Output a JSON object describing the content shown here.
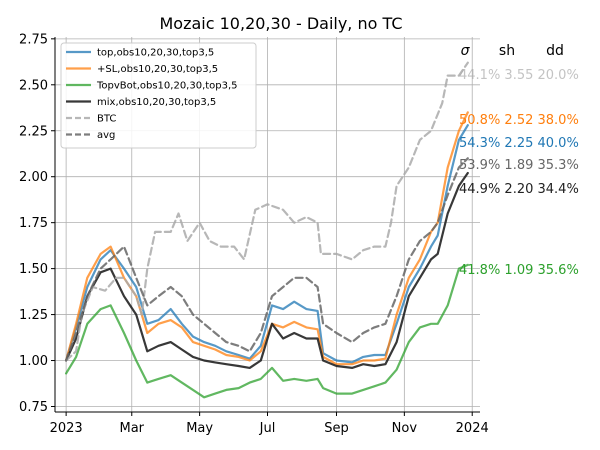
{
  "chart_data": {
    "type": "line",
    "title": "Mozaic 10,20,30 - Daily, no TC",
    "xlabel": "",
    "ylabel": "",
    "grid": true,
    "ylim": [
      0.72,
      2.76
    ],
    "yticks": [
      0.75,
      1.0,
      1.25,
      1.5,
      1.75,
      2.0,
      2.25,
      2.5,
      2.75
    ],
    "ytick_labels": [
      "0.75",
      "1.00",
      "1.25",
      "1.50",
      "1.75",
      "2.00",
      "2.25",
      "2.50",
      "2.75"
    ],
    "xlim": [
      "2022-12-22",
      "2024-01-08"
    ],
    "xticks": [
      "2023-01-01",
      "2023-03-01",
      "2023-05-01",
      "2023-07-01",
      "2023-09-01",
      "2023-11-01",
      "2024-01-01"
    ],
    "xtick_labels": [
      "2023",
      "Mar",
      "May",
      "Jul",
      "Sep",
      "Nov",
      "2024"
    ],
    "legend_position": "top-left",
    "stats_header": [
      "σ",
      "sh",
      "dd"
    ],
    "series": [
      {
        "name": "top,obs10,20,30,top3,5",
        "color": "#1f77b4",
        "dashed": false,
        "width": 2.2,
        "opacity": 0.75,
        "stats": "54.3% 2.25 40.0%",
        "points": [
          [
            "2023-01-01",
            1.0
          ],
          [
            "2023-01-10",
            1.18
          ],
          [
            "2023-01-20",
            1.4
          ],
          [
            "2023-02-01",
            1.55
          ],
          [
            "2023-02-10",
            1.6
          ],
          [
            "2023-02-22",
            1.5
          ],
          [
            "2023-03-05",
            1.4
          ],
          [
            "2023-03-15",
            1.2
          ],
          [
            "2023-03-25",
            1.22
          ],
          [
            "2023-04-05",
            1.28
          ],
          [
            "2023-04-15",
            1.2
          ],
          [
            "2023-04-25",
            1.13
          ],
          [
            "2023-05-05",
            1.1
          ],
          [
            "2023-05-15",
            1.08
          ],
          [
            "2023-05-25",
            1.05
          ],
          [
            "2023-06-05",
            1.03
          ],
          [
            "2023-06-15",
            1.01
          ],
          [
            "2023-06-25",
            1.08
          ],
          [
            "2023-07-05",
            1.3
          ],
          [
            "2023-07-15",
            1.28
          ],
          [
            "2023-07-25",
            1.32
          ],
          [
            "2023-08-05",
            1.28
          ],
          [
            "2023-08-15",
            1.27
          ],
          [
            "2023-08-20",
            1.04
          ],
          [
            "2023-09-01",
            1.0
          ],
          [
            "2023-09-15",
            0.99
          ],
          [
            "2023-09-25",
            1.02
          ],
          [
            "2023-10-05",
            1.03
          ],
          [
            "2023-10-15",
            1.03
          ],
          [
            "2023-10-25",
            1.2
          ],
          [
            "2023-11-05",
            1.4
          ],
          [
            "2023-11-15",
            1.5
          ],
          [
            "2023-11-25",
            1.62
          ],
          [
            "2023-12-01",
            1.68
          ],
          [
            "2023-12-10",
            1.95
          ],
          [
            "2023-12-20",
            2.2
          ],
          [
            "2023-12-28",
            2.28
          ]
        ]
      },
      {
        "name": "+SL,obs10,20,30,top3,5",
        "color": "#ff7f0e",
        "dashed": false,
        "width": 2.2,
        "opacity": 0.75,
        "stats": "50.8% 2.52 38.0%",
        "points": [
          [
            "2023-01-01",
            1.0
          ],
          [
            "2023-01-10",
            1.2
          ],
          [
            "2023-01-20",
            1.45
          ],
          [
            "2023-02-01",
            1.58
          ],
          [
            "2023-02-10",
            1.62
          ],
          [
            "2023-02-22",
            1.45
          ],
          [
            "2023-03-05",
            1.35
          ],
          [
            "2023-03-15",
            1.15
          ],
          [
            "2023-03-25",
            1.2
          ],
          [
            "2023-04-05",
            1.22
          ],
          [
            "2023-04-15",
            1.18
          ],
          [
            "2023-04-25",
            1.1
          ],
          [
            "2023-05-05",
            1.08
          ],
          [
            "2023-05-15",
            1.06
          ],
          [
            "2023-05-25",
            1.03
          ],
          [
            "2023-06-05",
            1.02
          ],
          [
            "2023-06-15",
            1.0
          ],
          [
            "2023-06-25",
            1.05
          ],
          [
            "2023-07-05",
            1.2
          ],
          [
            "2023-07-15",
            1.18
          ],
          [
            "2023-07-25",
            1.21
          ],
          [
            "2023-08-05",
            1.18
          ],
          [
            "2023-08-15",
            1.17
          ],
          [
            "2023-08-20",
            1.02
          ],
          [
            "2023-09-01",
            0.98
          ],
          [
            "2023-09-15",
            0.98
          ],
          [
            "2023-09-25",
            1.0
          ],
          [
            "2023-10-05",
            1.0
          ],
          [
            "2023-10-15",
            1.01
          ],
          [
            "2023-10-25",
            1.25
          ],
          [
            "2023-11-05",
            1.45
          ],
          [
            "2023-11-15",
            1.55
          ],
          [
            "2023-11-25",
            1.7
          ],
          [
            "2023-12-01",
            1.75
          ],
          [
            "2023-12-10",
            2.05
          ],
          [
            "2023-12-20",
            2.25
          ],
          [
            "2023-12-28",
            2.35
          ]
        ]
      },
      {
        "name": "TopvBot,obs10,20,30,top3,5",
        "color": "#2ca02c",
        "dashed": false,
        "width": 2.2,
        "opacity": 0.75,
        "stats": "41.8% 1.09 35.6%",
        "points": [
          [
            "2023-01-01",
            0.93
          ],
          [
            "2023-01-10",
            1.02
          ],
          [
            "2023-01-20",
            1.2
          ],
          [
            "2023-02-01",
            1.28
          ],
          [
            "2023-02-10",
            1.3
          ],
          [
            "2023-02-22",
            1.15
          ],
          [
            "2023-03-05",
            1.0
          ],
          [
            "2023-03-15",
            0.88
          ],
          [
            "2023-03-25",
            0.9
          ],
          [
            "2023-04-05",
            0.92
          ],
          [
            "2023-04-15",
            0.88
          ],
          [
            "2023-04-25",
            0.84
          ],
          [
            "2023-05-05",
            0.8
          ],
          [
            "2023-05-15",
            0.82
          ],
          [
            "2023-05-25",
            0.84
          ],
          [
            "2023-06-05",
            0.85
          ],
          [
            "2023-06-15",
            0.88
          ],
          [
            "2023-06-25",
            0.9
          ],
          [
            "2023-07-05",
            0.96
          ],
          [
            "2023-07-15",
            0.89
          ],
          [
            "2023-07-25",
            0.9
          ],
          [
            "2023-08-05",
            0.89
          ],
          [
            "2023-08-15",
            0.9
          ],
          [
            "2023-08-20",
            0.85
          ],
          [
            "2023-09-01",
            0.82
          ],
          [
            "2023-09-15",
            0.82
          ],
          [
            "2023-09-25",
            0.84
          ],
          [
            "2023-10-05",
            0.86
          ],
          [
            "2023-10-15",
            0.88
          ],
          [
            "2023-10-25",
            0.95
          ],
          [
            "2023-11-05",
            1.1
          ],
          [
            "2023-11-15",
            1.18
          ],
          [
            "2023-11-25",
            1.2
          ],
          [
            "2023-12-01",
            1.2
          ],
          [
            "2023-12-10",
            1.3
          ],
          [
            "2023-12-20",
            1.5
          ],
          [
            "2023-12-28",
            1.52
          ]
        ]
      },
      {
        "name": "mix,obs10,20,30,top3,5",
        "color": "#222222",
        "dashed": false,
        "width": 2.2,
        "opacity": 0.9,
        "stats": "44.9% 2.20 34.4%",
        "points": [
          [
            "2023-01-01",
            1.0
          ],
          [
            "2023-01-10",
            1.12
          ],
          [
            "2023-01-20",
            1.35
          ],
          [
            "2023-02-01",
            1.48
          ],
          [
            "2023-02-10",
            1.5
          ],
          [
            "2023-02-22",
            1.35
          ],
          [
            "2023-03-05",
            1.25
          ],
          [
            "2023-03-15",
            1.05
          ],
          [
            "2023-03-25",
            1.08
          ],
          [
            "2023-04-05",
            1.1
          ],
          [
            "2023-04-15",
            1.06
          ],
          [
            "2023-04-25",
            1.02
          ],
          [
            "2023-05-05",
            1.0
          ],
          [
            "2023-05-15",
            0.99
          ],
          [
            "2023-05-25",
            0.98
          ],
          [
            "2023-06-05",
            0.97
          ],
          [
            "2023-06-15",
            0.96
          ],
          [
            "2023-06-25",
            1.0
          ],
          [
            "2023-07-05",
            1.2
          ],
          [
            "2023-07-15",
            1.12
          ],
          [
            "2023-07-25",
            1.15
          ],
          [
            "2023-08-05",
            1.12
          ],
          [
            "2023-08-15",
            1.12
          ],
          [
            "2023-08-20",
            1.0
          ],
          [
            "2023-09-01",
            0.97
          ],
          [
            "2023-09-15",
            0.96
          ],
          [
            "2023-09-25",
            0.98
          ],
          [
            "2023-10-05",
            0.97
          ],
          [
            "2023-10-15",
            0.98
          ],
          [
            "2023-10-25",
            1.1
          ],
          [
            "2023-11-05",
            1.35
          ],
          [
            "2023-11-15",
            1.45
          ],
          [
            "2023-11-25",
            1.55
          ],
          [
            "2023-12-01",
            1.58
          ],
          [
            "2023-12-10",
            1.8
          ],
          [
            "2023-12-20",
            1.95
          ],
          [
            "2023-12-28",
            2.02
          ]
        ]
      },
      {
        "name": "BTC",
        "color": "#aaaaaa",
        "dashed": true,
        "width": 2.2,
        "opacity": 0.85,
        "stats": "44.1% 3.55 20.0%",
        "points": [
          [
            "2023-01-01",
            1.0
          ],
          [
            "2023-01-10",
            1.05
          ],
          [
            "2023-01-15",
            1.25
          ],
          [
            "2023-01-25",
            1.4
          ],
          [
            "2023-02-05",
            1.38
          ],
          [
            "2023-02-15",
            1.45
          ],
          [
            "2023-02-22",
            1.45
          ],
          [
            "2023-03-05",
            1.35
          ],
          [
            "2023-03-10",
            1.25
          ],
          [
            "2023-03-15",
            1.5
          ],
          [
            "2023-03-22",
            1.7
          ],
          [
            "2023-04-05",
            1.7
          ],
          [
            "2023-04-12",
            1.8
          ],
          [
            "2023-04-20",
            1.65
          ],
          [
            "2023-05-01",
            1.75
          ],
          [
            "2023-05-10",
            1.65
          ],
          [
            "2023-05-20",
            1.62
          ],
          [
            "2023-06-01",
            1.62
          ],
          [
            "2023-06-10",
            1.55
          ],
          [
            "2023-06-20",
            1.82
          ],
          [
            "2023-07-01",
            1.85
          ],
          [
            "2023-07-15",
            1.82
          ],
          [
            "2023-07-25",
            1.75
          ],
          [
            "2023-08-05",
            1.78
          ],
          [
            "2023-08-15",
            1.75
          ],
          [
            "2023-08-18",
            1.58
          ],
          [
            "2023-09-01",
            1.58
          ],
          [
            "2023-09-15",
            1.55
          ],
          [
            "2023-09-25",
            1.6
          ],
          [
            "2023-10-05",
            1.62
          ],
          [
            "2023-10-15",
            1.62
          ],
          [
            "2023-10-20",
            1.75
          ],
          [
            "2023-10-25",
            1.95
          ],
          [
            "2023-11-05",
            2.05
          ],
          [
            "2023-11-15",
            2.2
          ],
          [
            "2023-11-25",
            2.25
          ],
          [
            "2023-12-05",
            2.4
          ],
          [
            "2023-12-10",
            2.55
          ],
          [
            "2023-12-20",
            2.55
          ],
          [
            "2023-12-28",
            2.62
          ]
        ]
      },
      {
        "name": "avg",
        "color": "#666666",
        "dashed": true,
        "width": 2.2,
        "opacity": 0.85,
        "stats": "53.9% 1.89 35.3%",
        "points": [
          [
            "2023-01-01",
            1.0
          ],
          [
            "2023-01-10",
            1.15
          ],
          [
            "2023-01-20",
            1.35
          ],
          [
            "2023-02-01",
            1.5
          ],
          [
            "2023-02-10",
            1.55
          ],
          [
            "2023-02-22",
            1.62
          ],
          [
            "2023-03-05",
            1.45
          ],
          [
            "2023-03-15",
            1.3
          ],
          [
            "2023-03-25",
            1.35
          ],
          [
            "2023-04-05",
            1.4
          ],
          [
            "2023-04-15",
            1.35
          ],
          [
            "2023-04-25",
            1.25
          ],
          [
            "2023-05-05",
            1.2
          ],
          [
            "2023-05-15",
            1.15
          ],
          [
            "2023-05-25",
            1.1
          ],
          [
            "2023-06-05",
            1.08
          ],
          [
            "2023-06-15",
            1.05
          ],
          [
            "2023-06-25",
            1.15
          ],
          [
            "2023-07-05",
            1.35
          ],
          [
            "2023-07-15",
            1.4
          ],
          [
            "2023-07-25",
            1.45
          ],
          [
            "2023-08-05",
            1.45
          ],
          [
            "2023-08-15",
            1.4
          ],
          [
            "2023-08-20",
            1.2
          ],
          [
            "2023-09-01",
            1.15
          ],
          [
            "2023-09-15",
            1.1
          ],
          [
            "2023-09-25",
            1.15
          ],
          [
            "2023-10-05",
            1.18
          ],
          [
            "2023-10-15",
            1.2
          ],
          [
            "2023-10-25",
            1.35
          ],
          [
            "2023-11-05",
            1.55
          ],
          [
            "2023-11-15",
            1.65
          ],
          [
            "2023-11-25",
            1.7
          ],
          [
            "2023-12-01",
            1.75
          ],
          [
            "2023-12-10",
            1.9
          ],
          [
            "2023-12-20",
            2.05
          ],
          [
            "2023-12-28",
            2.1
          ]
        ]
      }
    ]
  }
}
